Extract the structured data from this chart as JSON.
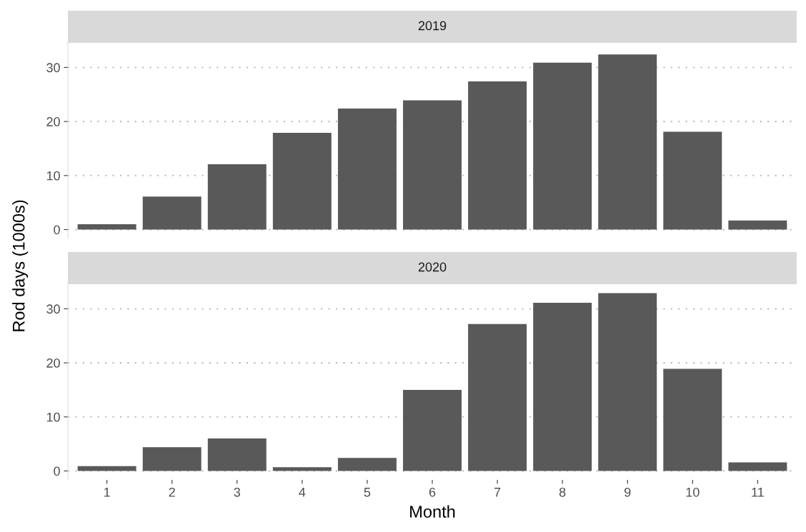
{
  "chart_data": [
    {
      "type": "bar",
      "title": "2019",
      "ylabel": "Rod days (1000s)",
      "categories": [
        "1",
        "2",
        "3",
        "4",
        "5",
        "6",
        "7",
        "8",
        "9",
        "10",
        "11"
      ],
      "values": [
        1.0,
        6.1,
        12.1,
        17.9,
        22.4,
        23.9,
        27.4,
        30.9,
        32.4,
        18.1,
        1.7
      ],
      "color": "#595959",
      "ylim": [
        -1.65,
        34.55
      ],
      "yticks": [
        0,
        10,
        20,
        30
      ],
      "grid": "y",
      "tick_labels": "y"
    },
    {
      "type": "bar",
      "title": "2020",
      "xlabel": "Month",
      "categories": [
        "1",
        "2",
        "3",
        "4",
        "5",
        "6",
        "7",
        "8",
        "9",
        "10",
        "11"
      ],
      "values": [
        0.9,
        4.4,
        6.0,
        0.7,
        2.4,
        15.0,
        27.2,
        31.1,
        32.9,
        18.9,
        1.6
      ],
      "color": "#595959",
      "ylim": [
        -1.65,
        34.55
      ],
      "yticks": [
        0,
        10,
        20,
        30
      ],
      "grid": "y"
    }
  ]
}
